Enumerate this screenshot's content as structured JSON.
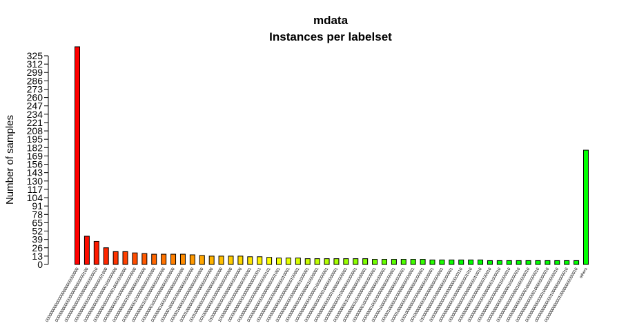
{
  "chart_data": {
    "type": "bar",
    "title": "mdata",
    "subtitle": "Instances per labelset",
    "xlabel": "",
    "ylabel": "Number of samples",
    "ylim": [
      0,
      325
    ],
    "grid": false,
    "legend": "none",
    "yticks": [
      0,
      13,
      26,
      39,
      52,
      65,
      78,
      91,
      104,
      117,
      130,
      143,
      156,
      169,
      182,
      195,
      208,
      221,
      234,
      247,
      260,
      273,
      286,
      299,
      312,
      325
    ],
    "categories": [
      "000000000000000000000000000",
      "000000000000000000000000100",
      "000000000000000000000000010",
      "000000000000000000000001000",
      "000000000000000000100000000",
      "000000000000000010000000000",
      "000000000000100000000000000",
      "000000000001000000000000000",
      "000000000010000000000000000",
      "000000000100000000000000000",
      "000000001000000000000000000",
      "000000010000000000000000000",
      "000000100000000000000000000",
      "000001000000000000000000000",
      "000010000000000000000000000",
      "000100000000000000000000000",
      "001000000000000000000000000",
      "010000000000000000000000000",
      "100000000000000000000000001",
      "000000000000000000000000011",
      "000000000000000000000000101",
      "000000000000000000000001001",
      "000000000000000000000010001",
      "000000000000000000000100001",
      "000000000000000000001000001",
      "000000000000000000010000001",
      "000000000000000001000000001",
      "000000000000000100000000001",
      "000000000000001000000000001",
      "000000000000010000000000001",
      "000000000010000000000000001",
      "000000000100000000000000001",
      "000000001000000000000000001",
      "000000010000000000000000001",
      "000000100000000000000000001",
      "000001000000000000000000001",
      "000010000000000000000000001",
      "000100000000000000000000001",
      "001000000000000000000000001",
      "010000000000000000000000001",
      "000000000000000000000000110",
      "000000000000000000000001010",
      "000000000000000000000010010",
      "000000000000000000000100010",
      "000000000000000000001000010",
      "000000000000000000010000010",
      "000000000000000000100000010",
      "000000000000000001000000010",
      "000000000000000010000000010",
      "000000000000000100000000010",
      "000000000000001000000000010",
      "000000000000010000000000010",
      "000000000000100000000000010",
      "others"
    ],
    "values": [
      339,
      44,
      36,
      26,
      20,
      20,
      18,
      17,
      16,
      16,
      16,
      16,
      15,
      14,
      13,
      13,
      13,
      13,
      12,
      12,
      11,
      10,
      10,
      10,
      9,
      9,
      9,
      9,
      9,
      9,
      9,
      8,
      8,
      8,
      8,
      8,
      8,
      7,
      7,
      7,
      7,
      7,
      7,
      6,
      6,
      6,
      6,
      6,
      6,
      6,
      6,
      6,
      6,
      178
    ],
    "colors": [
      "#ff0000",
      "#ff0d00",
      "#ff1a00",
      "#ff2600",
      "#ff3300",
      "#ff4000",
      "#ff4d00",
      "#ff5900",
      "#ff6600",
      "#ff7300",
      "#ff8000",
      "#ff8c00",
      "#ff9900",
      "#ffa600",
      "#ffb300",
      "#ffbf00",
      "#ffcc00",
      "#ffd900",
      "#ffe600",
      "#fff200",
      "#ffff00",
      "#f2ff00",
      "#e6ff00",
      "#d9ff00",
      "#ccff00",
      "#bfff00",
      "#b3ff00",
      "#a6ff00",
      "#99ff00",
      "#8cff00",
      "#80ff00",
      "#73ff00",
      "#66ff00",
      "#59ff00",
      "#4dff00",
      "#40ff00",
      "#33ff00",
      "#26ff00",
      "#1aff00",
      "#0dff00",
      "#00ff00",
      "#00ff00",
      "#00ff00",
      "#00ff00",
      "#00ff00",
      "#00ff00",
      "#00ff00",
      "#00ff00",
      "#00ff00",
      "#00ff00",
      "#00ff00",
      "#00ff00",
      "#00ff00",
      "#00ff00"
    ]
  }
}
